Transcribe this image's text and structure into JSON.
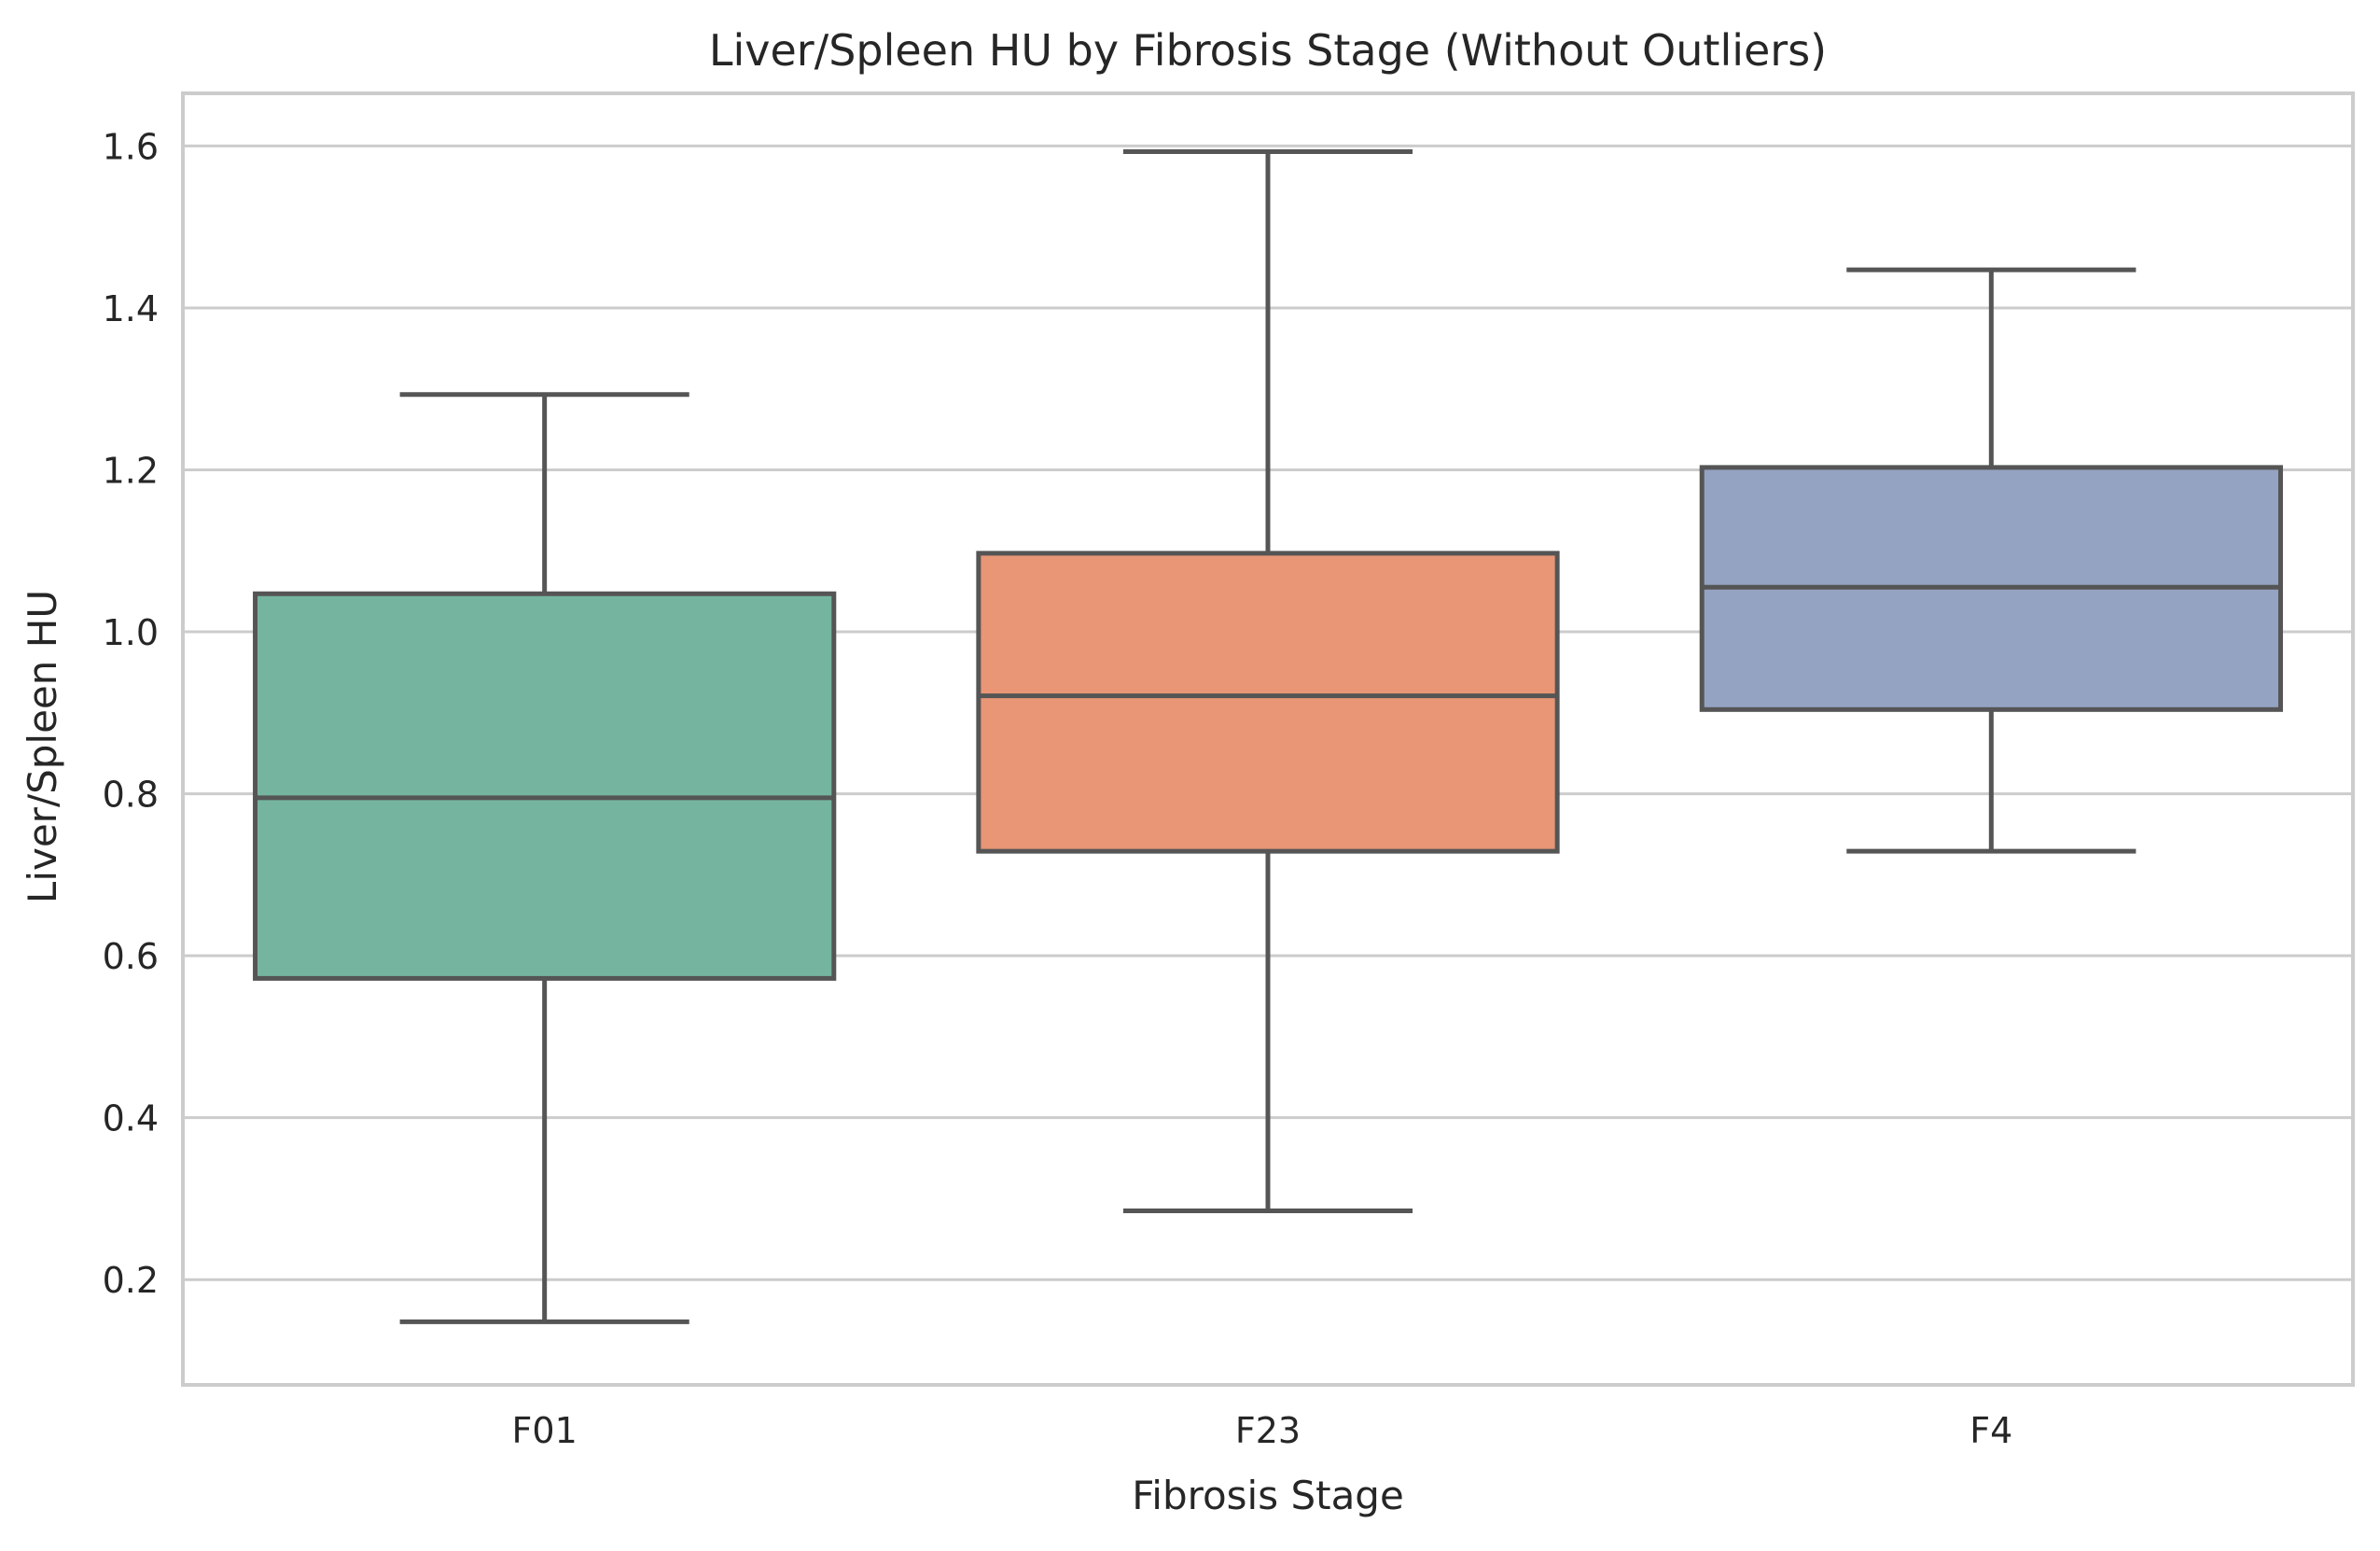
{
  "chart_data": {
    "type": "box",
    "title": "Liver/Spleen HU by Fibrosis Stage (Without Outliers)",
    "xlabel": "Fibrosis Stage",
    "ylabel": "Liver/Spleen HU",
    "ylim": [
      0.07,
      1.665
    ],
    "y_ticks": [
      0.2,
      0.4,
      0.6,
      0.8,
      1.0,
      1.2,
      1.4,
      1.6
    ],
    "y_tick_labels": [
      "0.2",
      "0.4",
      "0.6",
      "0.8",
      "1.0",
      "1.2",
      "1.4",
      "1.6"
    ],
    "grid": "horizontal",
    "categories": [
      "F01",
      "F23",
      "F4"
    ],
    "boxes": [
      {
        "category": "F01",
        "whisker_low": 0.148,
        "q1": 0.572,
        "median": 0.795,
        "q3": 1.047,
        "whisker_high": 1.293,
        "color": "#75b5a0"
      },
      {
        "category": "F23",
        "whisker_low": 0.285,
        "q1": 0.729,
        "median": 0.921,
        "q3": 1.097,
        "whisker_high": 1.593,
        "color": "#e89676"
      },
      {
        "category": "F4",
        "whisker_low": 0.729,
        "q1": 0.904,
        "median": 1.055,
        "q3": 1.203,
        "whisker_high": 1.447,
        "color": "#94a3c2"
      }
    ],
    "line_color": "#555555",
    "grid_color": "#cccccc",
    "frame_color": "#cccccc"
  }
}
